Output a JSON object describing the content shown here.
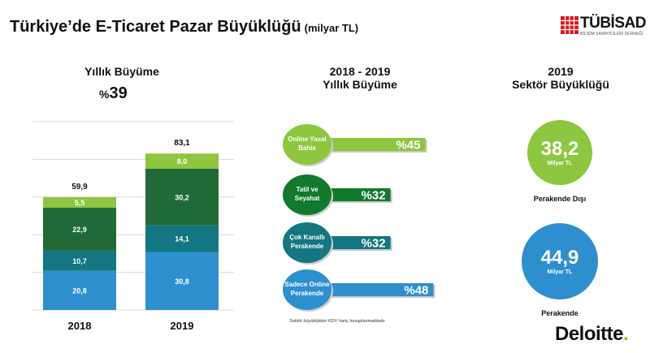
{
  "page": {
    "title": "Türkiye’de E-Ticaret Pazar Büyüklüğü",
    "title_unit": "(milyar TL)",
    "logo_name": "TÜBİSAD",
    "logo_sub": "BİLİŞİM SANAYİCİLERİ DERNEĞİ",
    "brand": "Deloitte",
    "brand_dot": ".",
    "footnote": "Sektör büyüklükleri KDV hariç hesaplanmaktadır"
  },
  "left_panel": {
    "header": "Yıllık Büyüme",
    "growth_symbol": "%",
    "growth_value": "39"
  },
  "middle_panel": {
    "header_line1": "2018 - 2019",
    "header_line2": "Yıllık Büyüme"
  },
  "right_panel": {
    "header_line1": "2019",
    "header_line2": "Sektör Büyüklüğü",
    "bubbles": [
      {
        "value": "38,2",
        "unit": "Milyar TL",
        "caption": "Perakende Dışı",
        "color": "#8dc63f"
      },
      {
        "value": "44,9",
        "unit": "Milyar TL",
        "caption": "Perakende",
        "color": "#2e8fcf"
      }
    ]
  },
  "chart_data": [
    {
      "type": "bar",
      "stacked": true,
      "categories": [
        "2018",
        "2019"
      ],
      "totals": [
        "59,9",
        "83,1"
      ],
      "series": [
        {
          "values": [
            20.8,
            30.8
          ],
          "labels": [
            "20,8",
            "30,8"
          ],
          "color": "#2e8fcf"
        },
        {
          "values": [
            10.7,
            14.1
          ],
          "labels": [
            "10,7",
            "14,1"
          ],
          "color": "#137680"
        },
        {
          "values": [
            22.9,
            30.2
          ],
          "labels": [
            "22,9",
            "30,2"
          ],
          "color": "#1f6a36"
        },
        {
          "values": [
            5.5,
            8.0
          ],
          "labels": [
            "5,5",
            "8,0"
          ],
          "color": "#8dc63f"
        }
      ],
      "ylim": [
        0,
        100
      ],
      "grid": true
    },
    {
      "type": "bar",
      "orientation": "horizontal",
      "categories": [
        "Online Yasal Bahis",
        "Tatil ve Seyahat",
        "Çok Kanallı Perakende",
        "Sadece Online Perakende"
      ],
      "category_lines": [
        [
          "Online Yasal",
          "Bahis"
        ],
        [
          "Tatil ve",
          "Seyahat"
        ],
        [
          "Çok Kanallı",
          "Perakende"
        ],
        [
          "Sadece Online",
          "Perakende"
        ]
      ],
      "values": [
        45,
        32,
        32,
        48
      ],
      "labels": [
        "%45",
        "%32",
        "%32",
        "%48"
      ],
      "colors": [
        "#8dc63f",
        "#137a2d",
        "#137680",
        "#2e8fcf"
      ]
    }
  ]
}
